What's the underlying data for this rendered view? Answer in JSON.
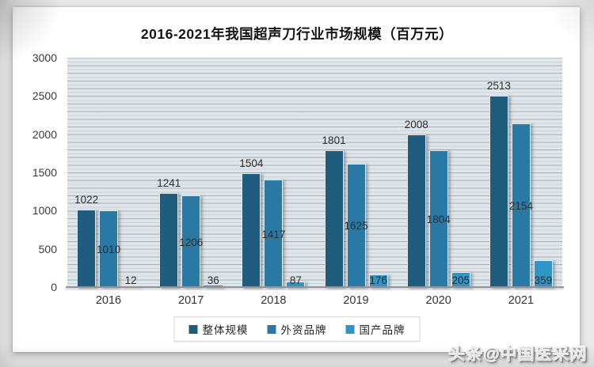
{
  "page": {
    "watermark": "头条@中国医采网"
  },
  "chart_data": {
    "type": "bar",
    "title": "2016-2021年我国超声刀行业市场规模（百万元）",
    "categories": [
      "2016",
      "2017",
      "2018",
      "2019",
      "2020",
      "2021"
    ],
    "series": [
      {
        "name": "整体规模",
        "color": "#1f5c7d",
        "label_position": "above",
        "values": [
          1022,
          1241,
          1504,
          1801,
          2008,
          2513
        ]
      },
      {
        "name": "外资品牌",
        "color": "#2979a4",
        "label_position": "center",
        "values": [
          1010,
          1206,
          1417,
          1625,
          1804,
          2154
        ]
      },
      {
        "name": "国产品牌",
        "color": "#2f95c8",
        "label_position": "bottom",
        "values": [
          12,
          36,
          87,
          176,
          205,
          359
        ]
      }
    ],
    "ylim": [
      0,
      3000
    ],
    "yticks": [
      0,
      500,
      1000,
      1500,
      2000,
      2500,
      3000
    ],
    "grid": "horizontal minor gridlines",
    "legend_position": "bottom"
  }
}
